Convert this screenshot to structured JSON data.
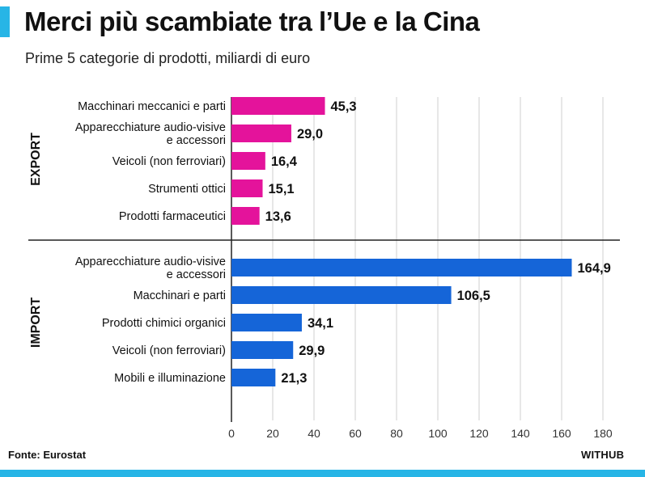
{
  "header": {
    "title": "Merci più scambiate tra l’Ue e la Cina",
    "subtitle": "Prime 5 categorie di prodotti, miliardi di euro"
  },
  "footer": {
    "source": "Fonte: Eurostat",
    "brand": "WITHUB"
  },
  "colors": {
    "export": "#e4139b",
    "import": "#1565d8",
    "accent": "#27b5e6"
  },
  "chart_data": {
    "type": "bar",
    "orientation": "horizontal",
    "title": "Merci più scambiate tra l’Ue e la Cina",
    "subtitle": "Prime 5 categorie di prodotti, miliardi di euro",
    "xlabel": "",
    "ylabel": "",
    "xlim": [
      0,
      180
    ],
    "xticks": [
      0,
      20,
      40,
      60,
      80,
      100,
      120,
      140,
      160,
      180
    ],
    "grid": true,
    "groups": [
      {
        "name": "EXPORT",
        "items": [
          {
            "lines": [
              "Macchinari meccanici e parti"
            ],
            "value": 45.3,
            "label": "45,3"
          },
          {
            "lines": [
              "Apparecchiature audio-visive",
              "e accessori"
            ],
            "value": 29.0,
            "label": "29,0"
          },
          {
            "lines": [
              "Veicoli (non ferroviari)"
            ],
            "value": 16.4,
            "label": "16,4"
          },
          {
            "lines": [
              "Strumenti ottici"
            ],
            "value": 15.1,
            "label": "15,1"
          },
          {
            "lines": [
              "Prodotti farmaceutici"
            ],
            "value": 13.6,
            "label": "13,6"
          }
        ]
      },
      {
        "name": "IMPORT",
        "items": [
          {
            "lines": [
              "Apparecchiature audio-visive",
              "e accessori"
            ],
            "value": 164.9,
            "label": "164,9"
          },
          {
            "lines": [
              "Macchinari e parti"
            ],
            "value": 106.5,
            "label": "106,5"
          },
          {
            "lines": [
              "Prodotti chimici organici"
            ],
            "value": 34.1,
            "label": "34,1"
          },
          {
            "lines": [
              "Veicoli (non ferroviari)"
            ],
            "value": 29.9,
            "label": "29,9"
          },
          {
            "lines": [
              "Mobili e illuminazione"
            ],
            "value": 21.3,
            "label": "21,3"
          }
        ]
      }
    ]
  }
}
